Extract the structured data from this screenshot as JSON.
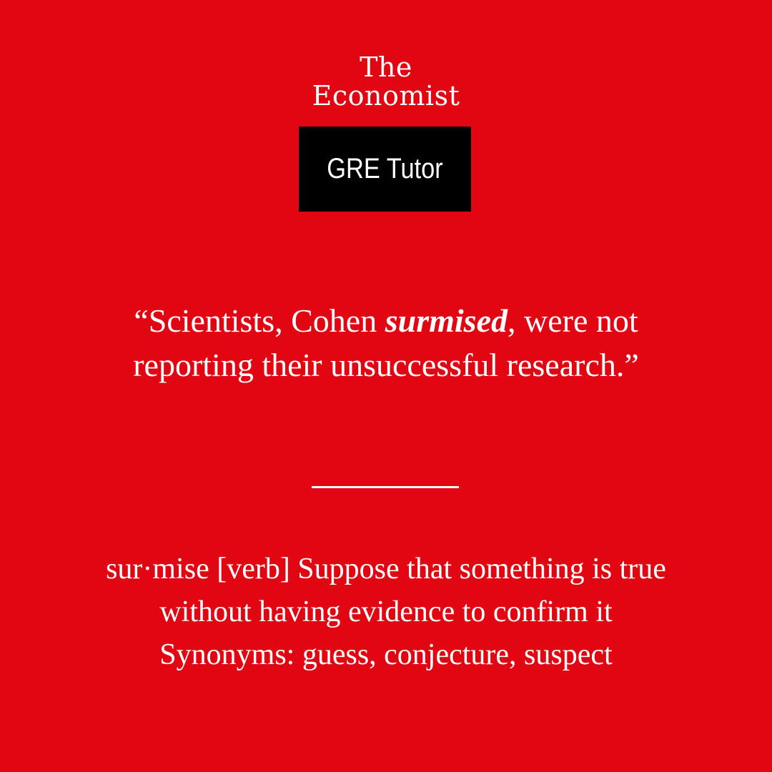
{
  "brand": {
    "line1": "The",
    "line2": "Economist",
    "logo_color": "#ffffff"
  },
  "badge": {
    "label": "GRE Tutor",
    "background": "#000000"
  },
  "quote": {
    "before": "“Scientists, Cohen ",
    "word": "surmised",
    "after": ", were not reporting their unsuccessful research.”"
  },
  "definition": {
    "line1": "sur·mise [verb] Suppose that something is true",
    "line2": "without having evidence to confirm it",
    "synonyms": "Synonyms: guess, conjecture, suspect"
  },
  "colors": {
    "background": "#e20612",
    "text": "#ffffff"
  }
}
